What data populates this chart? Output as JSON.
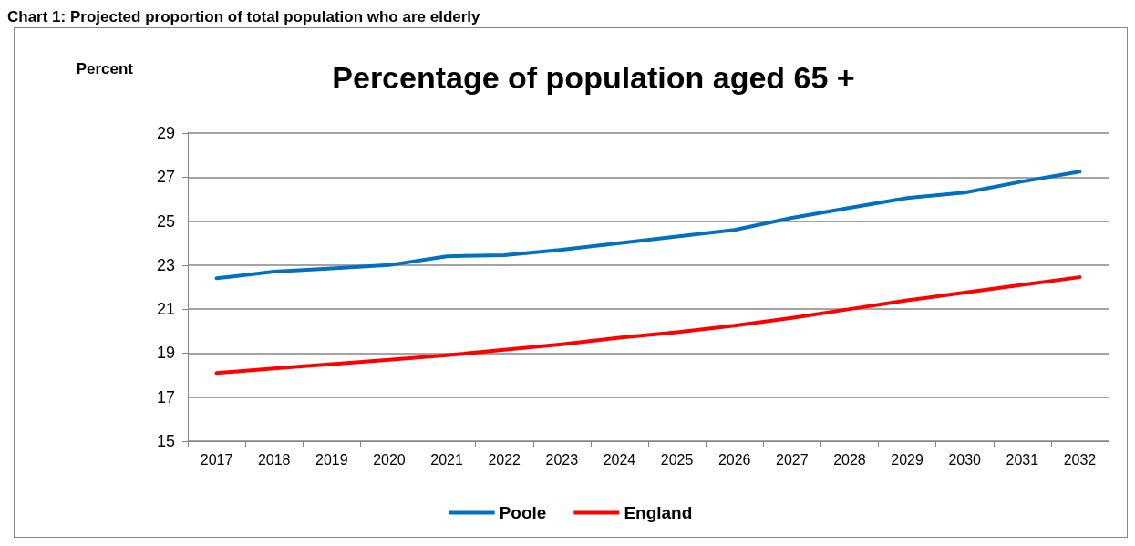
{
  "chart_data": {
    "type": "line",
    "title": "Percentage of population aged 65 +",
    "ylabel": "Percent",
    "annotations": [
      "Chart 1: Projected proportion of total population who are elderly"
    ],
    "categories": [
      "2017",
      "2018",
      "2019",
      "2020",
      "2021",
      "2022",
      "2023",
      "2024",
      "2025",
      "2026",
      "2027",
      "2028",
      "2029",
      "2030",
      "2031",
      "2032"
    ],
    "series": [
      {
        "name": "Poole",
        "color": "#0070c0",
        "values": [
          22.4,
          22.7,
          22.85,
          23.0,
          23.4,
          23.45,
          23.7,
          24.0,
          24.3,
          24.6,
          25.15,
          25.6,
          26.05,
          26.3,
          26.8,
          27.25
        ]
      },
      {
        "name": "England",
        "color": "#ff0000",
        "values": [
          18.1,
          18.3,
          18.5,
          18.7,
          18.9,
          19.15,
          19.4,
          19.7,
          19.95,
          20.25,
          20.6,
          21.0,
          21.4,
          21.75,
          22.1,
          22.45
        ]
      }
    ],
    "ylim": [
      15,
      29
    ],
    "yticks": [
      15,
      17,
      19,
      21,
      23,
      25,
      27,
      29
    ],
    "grid": "y",
    "legend": "bottom",
    "marker": "none",
    "line_style": "solid"
  }
}
